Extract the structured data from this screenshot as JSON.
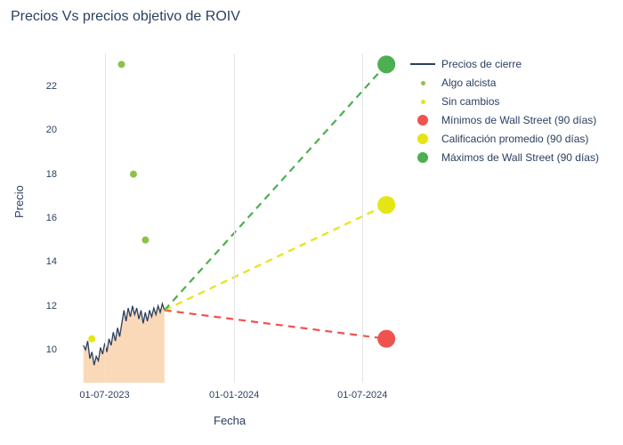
{
  "title": "Precios Vs precios objetivo de ROIV",
  "xlabel": "Fecha",
  "ylabel": "Precio",
  "chart": {
    "type": "line",
    "background_color": "#ffffff",
    "grid_color": "#e5e5e5",
    "text_color": "#2a3f5f",
    "title_fontsize": 16,
    "label_fontsize": 13,
    "tick_fontsize": 11,
    "legend_fontsize": 12,
    "ylim": [
      8.5,
      23.5
    ],
    "yticks": [
      10,
      12,
      14,
      16,
      18,
      20,
      22
    ],
    "xrange_days": 480,
    "xticks": [
      {
        "label": "01-07-2023",
        "t": 60
      },
      {
        "label": "01-01-2024",
        "t": 244
      },
      {
        "label": "01-07-2024",
        "t": 426
      }
    ],
    "price_series": {
      "color": "#2a3f5f",
      "fill_color": "#f7c08a",
      "t_start": 30,
      "t_end": 145,
      "values": [
        10.2,
        10.0,
        10.4,
        9.6,
        9.9,
        9.3,
        9.7,
        9.5,
        10.1,
        9.8,
        10.3,
        9.9,
        10.5,
        10.2,
        10.8,
        10.4,
        11.0,
        10.6,
        11.2,
        11.8,
        11.3,
        11.9,
        11.5,
        12.0,
        11.6,
        11.9,
        11.4,
        11.8,
        11.2,
        11.7,
        11.3,
        11.8,
        11.5,
        11.9,
        11.6,
        12.0,
        11.7,
        12.1,
        11.8
      ]
    },
    "algo_alcista": {
      "color": "#8bc34a",
      "marker_size": 4,
      "points": [
        {
          "t": 84,
          "y": 23.0
        },
        {
          "t": 101,
          "y": 18.0
        },
        {
          "t": 118,
          "y": 15.0
        }
      ]
    },
    "sin_cambios": {
      "color": "#e5e514",
      "marker_size": 4,
      "points": [
        {
          "t": 42,
          "y": 10.5
        }
      ]
    },
    "projections": {
      "start": {
        "t": 145,
        "y": 11.8
      },
      "end_t": 460,
      "min": {
        "color": "#ef5350",
        "y": 10.5,
        "marker_size": 10
      },
      "avg": {
        "color": "#e5e514",
        "y": 16.6,
        "marker_size": 10
      },
      "max": {
        "color": "#4caf50",
        "y": 23.0,
        "marker_size": 10
      }
    }
  },
  "legend": {
    "items": [
      {
        "label": "Precios de cierre",
        "kind": "line",
        "color": "#2a3f5f"
      },
      {
        "label": "Algo alcista",
        "kind": "dot",
        "color": "#8bc34a",
        "size": 5
      },
      {
        "label": "Sin cambios",
        "kind": "dot",
        "color": "#e5e514",
        "size": 5
      },
      {
        "label": "Mínimos de Wall Street (90 días)",
        "kind": "dot",
        "color": "#ef5350",
        "size": 12
      },
      {
        "label": "Calificación promedio (90 días)",
        "kind": "dot",
        "color": "#e5e514",
        "size": 12
      },
      {
        "label": "Máximos de Wall Street (90 días)",
        "kind": "dot",
        "color": "#4caf50",
        "size": 12
      }
    ]
  }
}
